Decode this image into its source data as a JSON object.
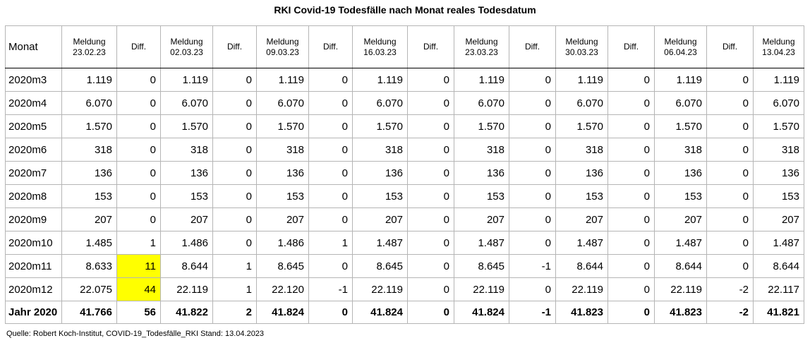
{
  "title": "RKI Covid-19 Todesfälle nach Monat reales Todesdatum",
  "source": "Quelle: Robert Koch-Institut, COVID-19_Todesfälle_RKI Stand: 13.04.2023",
  "highlight_color": "#ffff00",
  "headers": [
    {
      "line1": "Monat",
      "line2": ""
    },
    {
      "line1": "Meldung",
      "line2": "23.02.23"
    },
    {
      "line1": "Diff.",
      "line2": ""
    },
    {
      "line1": "Meldung",
      "line2": "02.03.23"
    },
    {
      "line1": "Diff.",
      "line2": ""
    },
    {
      "line1": "Meldung",
      "line2": "09.03.23"
    },
    {
      "line1": "Diff.",
      "line2": ""
    },
    {
      "line1": "Meldung",
      "line2": "16.03.23"
    },
    {
      "line1": "Diff.",
      "line2": ""
    },
    {
      "line1": "Meldung",
      "line2": "23.03.23"
    },
    {
      "line1": "Diff.",
      "line2": ""
    },
    {
      "line1": "Meldung",
      "line2": "30.03.23"
    },
    {
      "line1": "Diff.",
      "line2": ""
    },
    {
      "line1": "Meldung",
      "line2": "06.04.23"
    },
    {
      "line1": "Diff.",
      "line2": ""
    },
    {
      "line1": "Meldung",
      "line2": "13.04.23"
    }
  ],
  "rows": [
    [
      "2020m3",
      "1.119",
      "0",
      "1.119",
      "0",
      "1.119",
      "0",
      "1.119",
      "0",
      "1.119",
      "0",
      "1.119",
      "0",
      "1.119",
      "0",
      "1.119"
    ],
    [
      "2020m4",
      "6.070",
      "0",
      "6.070",
      "0",
      "6.070",
      "0",
      "6.070",
      "0",
      "6.070",
      "0",
      "6.070",
      "0",
      "6.070",
      "0",
      "6.070"
    ],
    [
      "2020m5",
      "1.570",
      "0",
      "1.570",
      "0",
      "1.570",
      "0",
      "1.570",
      "0",
      "1.570",
      "0",
      "1.570",
      "0",
      "1.570",
      "0",
      "1.570"
    ],
    [
      "2020m6",
      "318",
      "0",
      "318",
      "0",
      "318",
      "0",
      "318",
      "0",
      "318",
      "0",
      "318",
      "0",
      "318",
      "0",
      "318"
    ],
    [
      "2020m7",
      "136",
      "0",
      "136",
      "0",
      "136",
      "0",
      "136",
      "0",
      "136",
      "0",
      "136",
      "0",
      "136",
      "0",
      "136"
    ],
    [
      "2020m8",
      "153",
      "0",
      "153",
      "0",
      "153",
      "0",
      "153",
      "0",
      "153",
      "0",
      "153",
      "0",
      "153",
      "0",
      "153"
    ],
    [
      "2020m9",
      "207",
      "0",
      "207",
      "0",
      "207",
      "0",
      "207",
      "0",
      "207",
      "0",
      "207",
      "0",
      "207",
      "0",
      "207"
    ],
    [
      "2020m10",
      "1.485",
      "1",
      "1.486",
      "0",
      "1.486",
      "1",
      "1.487",
      "0",
      "1.487",
      "0",
      "1.487",
      "0",
      "1.487",
      "0",
      "1.487"
    ],
    [
      "2020m11",
      "8.633",
      "11",
      "8.644",
      "1",
      "8.645",
      "0",
      "8.645",
      "0",
      "8.645",
      "-1",
      "8.644",
      "0",
      "8.644",
      "0",
      "8.644"
    ],
    [
      "2020m12",
      "22.075",
      "44",
      "22.119",
      "1",
      "22.120",
      "-1",
      "22.119",
      "0",
      "22.119",
      "0",
      "22.119",
      "0",
      "22.119",
      "-2",
      "22.117"
    ]
  ],
  "total": [
    "Jahr 2020",
    "41.766",
    "56",
    "41.822",
    "2",
    "41.824",
    "0",
    "41.824",
    "0",
    "41.824",
    "-1",
    "41.823",
    "0",
    "41.823",
    "-2",
    "41.821"
  ],
  "highlighted_cells": [
    {
      "row": "2020m11",
      "column": "Diff. 02.03.23"
    },
    {
      "row": "2020m12",
      "column": "Diff. 02.03.23"
    }
  ]
}
